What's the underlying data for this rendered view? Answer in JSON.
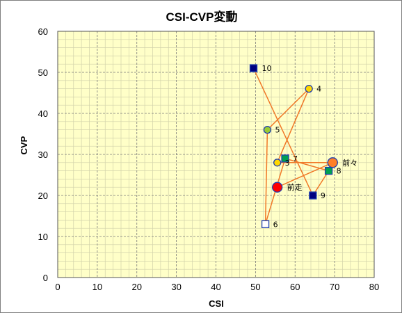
{
  "chart_data": {
    "type": "scatter",
    "title": "CSI-CVP変動",
    "xlabel": "CSI",
    "ylabel": "CVP",
    "xlim": [
      0,
      80
    ],
    "ylim": [
      0,
      60
    ],
    "xticks": [
      "0",
      "10",
      "20",
      "30",
      "40",
      "50",
      "60",
      "70",
      "80"
    ],
    "yticks": [
      "0",
      "10",
      "20",
      "30",
      "40",
      "50",
      "60"
    ],
    "grid": true,
    "legend": "none",
    "colors": {
      "plot_bg": "#ffffc8",
      "minor_grid": "#d2d2aa",
      "major_grid": "#787878",
      "line": "#f07828",
      "navy": "#000080",
      "marker_border": "#1f3fb0",
      "lime": "#9acd32",
      "yellow": "#ffd700",
      "green": "#00a050",
      "red": "#ff0000",
      "orange": "#ff7f27",
      "white": "#ffffff"
    },
    "points": [
      {
        "label": "前々",
        "x": 69.5,
        "y": 28,
        "marker": "circle",
        "fill": "#ff7f27",
        "stroke": "#1f3fb0",
        "size": "large",
        "label_dx": 14,
        "label_dy": 4
      },
      {
        "label": "前走",
        "x": 55.5,
        "y": 22,
        "marker": "circle",
        "fill": "#ff0000",
        "stroke": "#1f3fb0",
        "size": "large",
        "label_dx": 14,
        "label_dy": 4
      },
      {
        "label": "3",
        "x": 55.5,
        "y": 28,
        "marker": "circle",
        "fill": "#ffd700",
        "stroke": "#1f3fb0",
        "size": "small",
        "label_dx": 11,
        "label_dy": 4
      },
      {
        "label": "4",
        "x": 63.5,
        "y": 46,
        "marker": "circle",
        "fill": "#ffd700",
        "stroke": "#1f3fb0",
        "size": "small",
        "label_dx": 11,
        "label_dy": 4
      },
      {
        "label": "5",
        "x": 53,
        "y": 36,
        "marker": "circle",
        "fill": "#9acd32",
        "stroke": "#1f3fb0",
        "size": "small",
        "label_dx": 11,
        "label_dy": 4
      },
      {
        "label": "6",
        "x": 52.5,
        "y": 13,
        "marker": "square",
        "fill": "#ffffff",
        "stroke": "#1f3fb0",
        "size": "small",
        "label_dx": 11,
        "label_dy": 4
      },
      {
        "label": "7",
        "x": 57.5,
        "y": 29,
        "marker": "square",
        "fill": "#00a050",
        "stroke": "#1f3fb0",
        "size": "small",
        "label_dx": 11,
        "label_dy": 4
      },
      {
        "label": "8",
        "x": 68.5,
        "y": 26,
        "marker": "square",
        "fill": "#00a050",
        "stroke": "#1f3fb0",
        "size": "small",
        "label_dx": 11,
        "label_dy": 4
      },
      {
        "label": "9",
        "x": 64.5,
        "y": 20,
        "marker": "square",
        "fill": "#000080",
        "stroke": "#1f3fb0",
        "size": "small",
        "label_dx": 11,
        "label_dy": 4
      },
      {
        "label": "10",
        "x": 49.5,
        "y": 51,
        "marker": "square",
        "fill": "#000080",
        "stroke": "#1f3fb0",
        "size": "small",
        "label_dx": 12,
        "label_dy": 4
      }
    ],
    "path_order": [
      "10",
      "9",
      "8",
      "7",
      "6",
      "5",
      "4",
      "3",
      "前々",
      "前走"
    ]
  }
}
